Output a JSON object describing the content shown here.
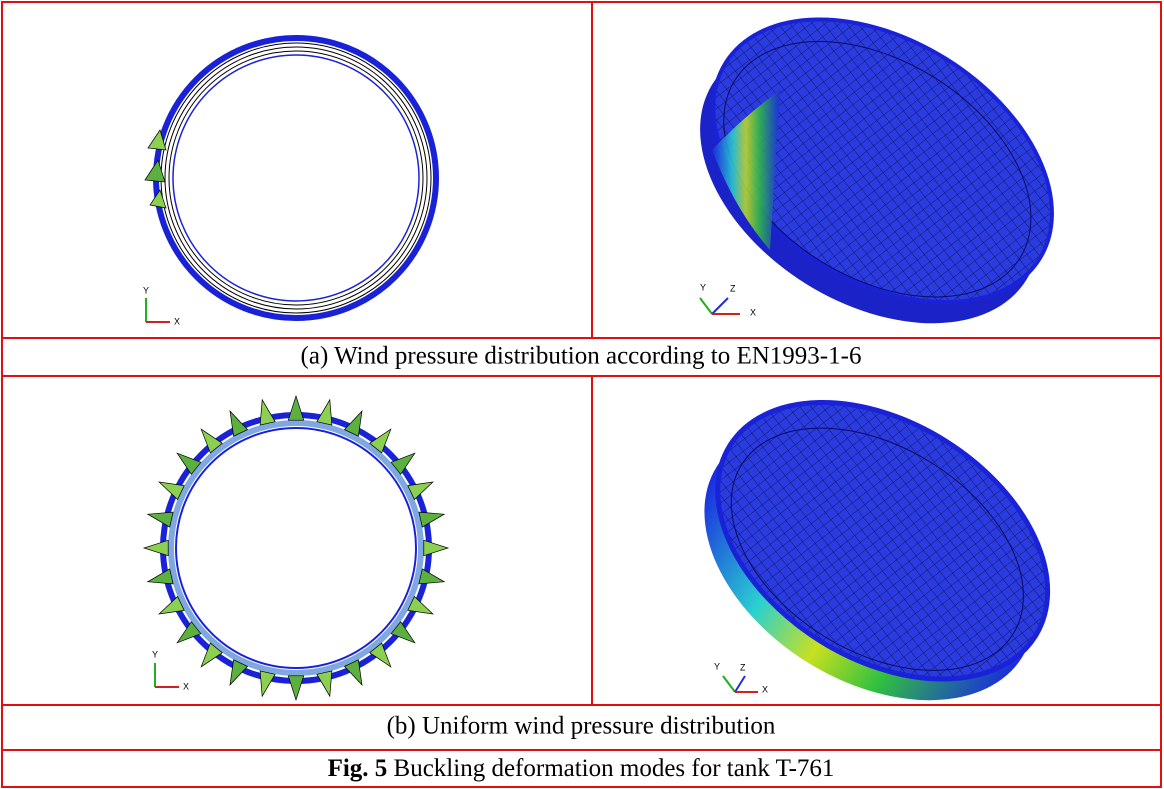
{
  "panels": [
    {
      "caption": "(a) Wind pressure distribution according to EN1993-1-6",
      "views": [
        {
          "axes": [
            "Y",
            "X"
          ]
        },
        {
          "axes": [
            "Y",
            "Z",
            "X"
          ]
        }
      ]
    },
    {
      "caption": "(b) Uniform wind pressure distribution",
      "views": [
        {
          "axes": [
            "Y",
            "X"
          ]
        },
        {
          "axes": [
            "Y",
            "Z",
            "X"
          ]
        }
      ]
    }
  ],
  "figure": {
    "label": "Fig. 5",
    "text": "Buckling deformation modes for tank T-761"
  }
}
